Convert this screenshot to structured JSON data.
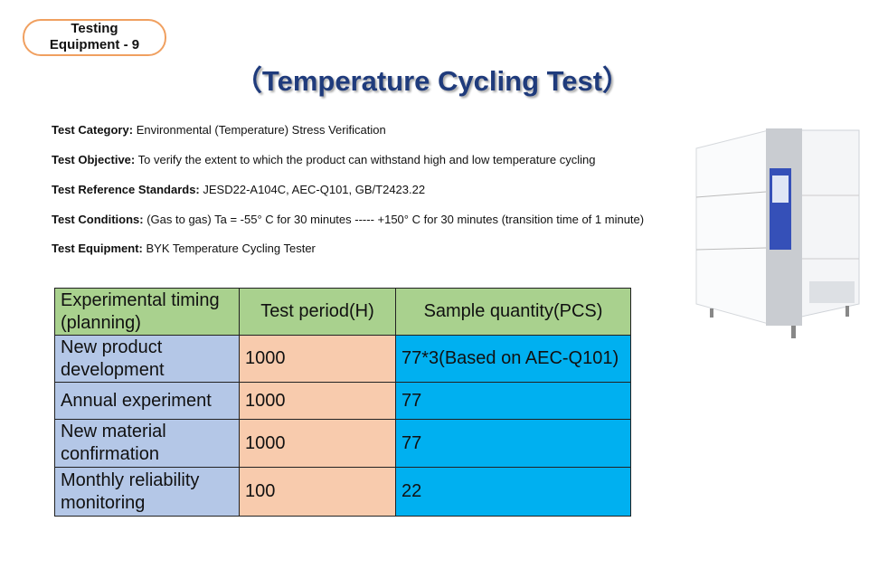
{
  "badge": {
    "lines": [
      "Testing",
      "Equipment - 9"
    ]
  },
  "title": "（Temperature Cycling Test）",
  "info": [
    {
      "label": "Test Category:",
      "text": "Environmental (Temperature) Stress Verification"
    },
    {
      "label": "Test Objective:",
      "text": "To verify the extent to which the product can withstand high and low temperature cycling"
    },
    {
      "label": "Test Reference Standards:",
      "text": "JESD22-A104C, AEC-Q101, GB/T2423.22"
    },
    {
      "label": "Test Conditions:",
      "text": "(Gas to gas) Ta = -55° C for 30 minutes ----- +150° C for 30 minutes (transition time of 1 minute)"
    },
    {
      "label": "Test Equipment:",
      "text": "BYK Temperature Cycling Tester"
    }
  ],
  "table": {
    "header": [
      "Experimental timing (planning)",
      "Test period(H)",
      "Sample quantity(PCS)"
    ],
    "rows": [
      [
        "New product development",
        "1000",
        "77*3(Based on AEC-Q101)"
      ],
      [
        "Annual experiment",
        "1000",
        "77"
      ],
      [
        "New material confirmation",
        "1000",
        "77"
      ],
      [
        "Monthly reliability monitoring",
        "100",
        "22"
      ]
    ]
  }
}
